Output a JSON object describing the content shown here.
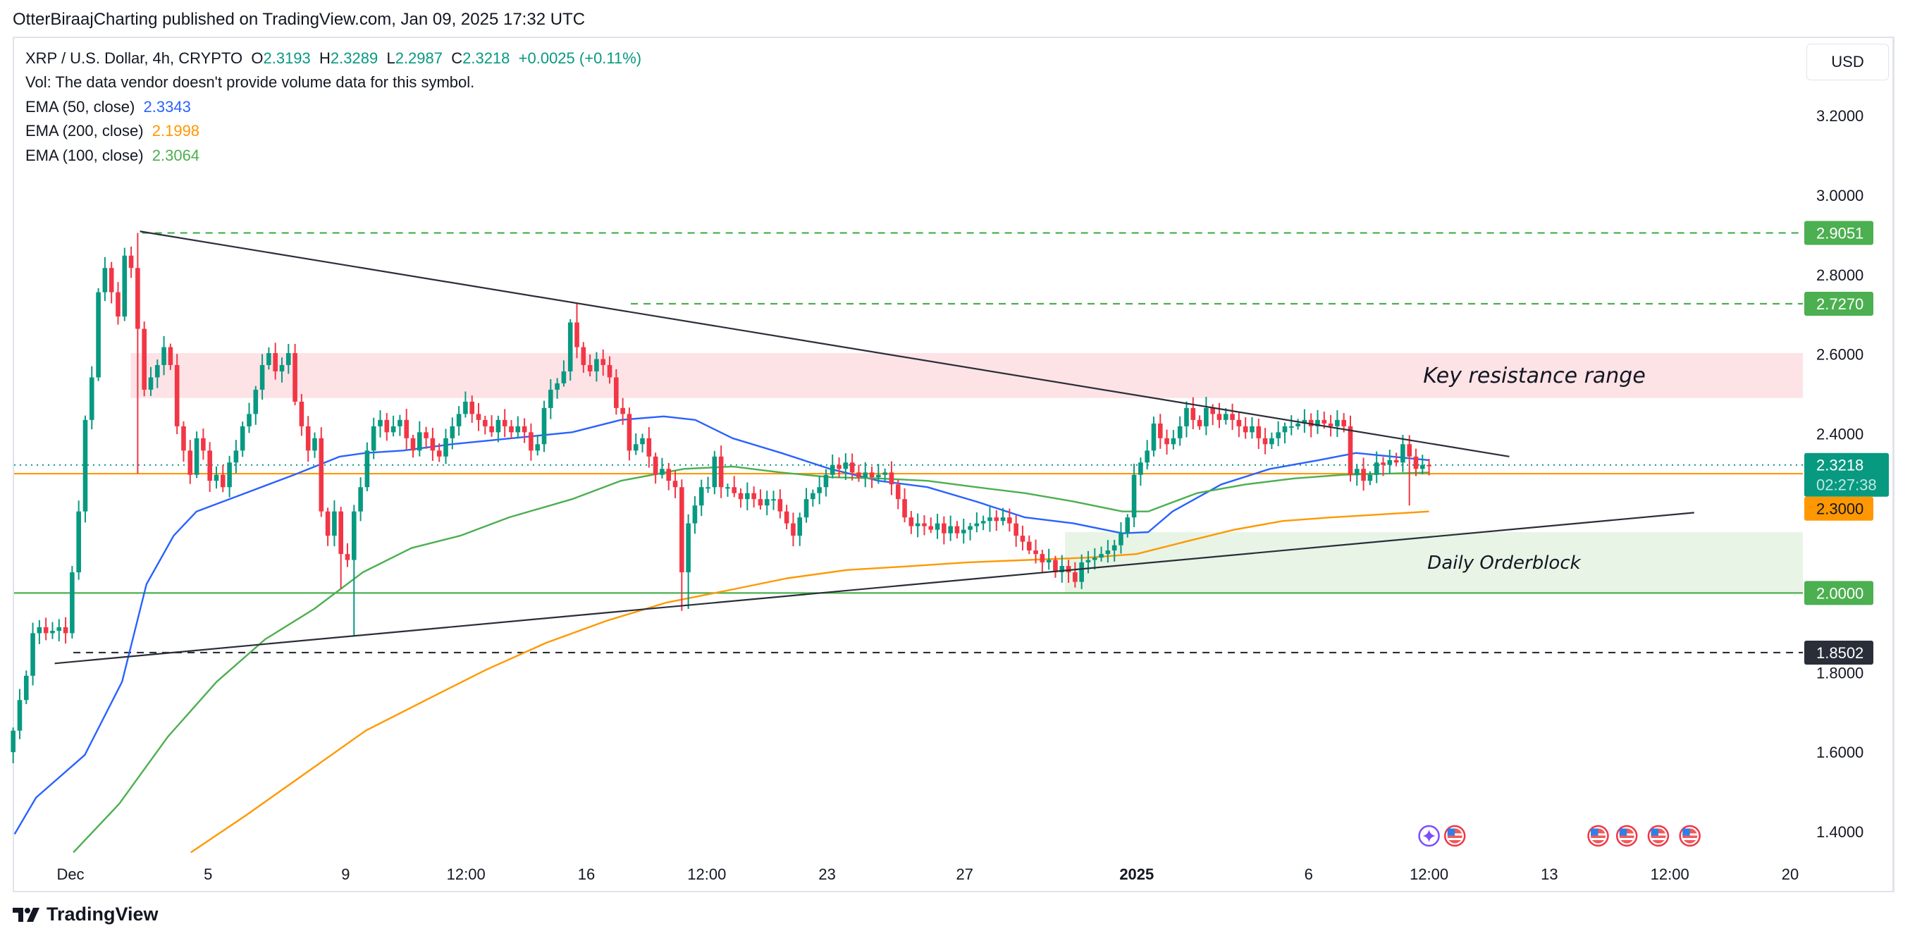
{
  "header": {
    "published": "OtterBiraajCharting published on TradingView.com, Jan 09, 2025 17:32 UTC"
  },
  "legend": {
    "symbol": "XRP / U.S. Dollar, 4h, CRYPTO",
    "o_label": "O",
    "o": "2.3193",
    "h_label": "H",
    "h": "2.3289",
    "l_label": "L",
    "l": "2.2987",
    "c_label": "C",
    "c": "2.3218",
    "change": "+0.0025 (+0.11%)",
    "vol": "Vol: The data vendor doesn't provide volume data for this symbol.",
    "ema50_label": "EMA (50, close)",
    "ema50": "2.3343",
    "ema200_label": "EMA (200, close)",
    "ema200": "2.1998",
    "ema100_label": "EMA (100, close)",
    "ema100": "2.3064"
  },
  "currency_button": "USD",
  "logo": {
    "text": "TradingView"
  },
  "colors": {
    "up": "#089981",
    "down": "#f23645",
    "ema50": "#2962ff",
    "ema100": "#4caf50",
    "ema200": "#ff9800",
    "resistance_zone": "#fde3e6",
    "orderblock_zone": "#e8f4e6",
    "level_green": "#4caf50",
    "trendline": "#2a2e39"
  },
  "chart_data": {
    "type": "candlestick",
    "grid": false,
    "ylim": [
      1.33,
      3.31
    ],
    "y_ticks": [
      "3.2000",
      "3.0000",
      "2.8000",
      "2.6000",
      "2.4000",
      "1.8000",
      "1.6000",
      "1.4000"
    ],
    "x_ticks": [
      {
        "label": "Dec",
        "date": "2024-12-01T00:00Z"
      },
      {
        "label": "5",
        "date": "2024-12-05T00:00Z"
      },
      {
        "label": "9",
        "date": "2024-12-09T00:00Z"
      },
      {
        "label": "12:00",
        "date": "2024-12-12T12:00Z"
      },
      {
        "label": "16",
        "date": "2024-12-16T00:00Z"
      },
      {
        "label": "12:00",
        "date": "2024-12-19T12:00Z"
      },
      {
        "label": "23",
        "date": "2024-12-23T00:00Z"
      },
      {
        "label": "27",
        "date": "2024-12-27T00:00Z"
      },
      {
        "label": "2025",
        "date": "2025-01-01T00:00Z",
        "bold": true
      },
      {
        "label": "6",
        "date": "2025-01-06T00:00Z"
      },
      {
        "label": "12:00",
        "date": "2025-01-09T12:00Z"
      },
      {
        "label": "13",
        "date": "2025-01-13T00:00Z"
      },
      {
        "label": "12:00",
        "date": "2025-01-16T12:00Z"
      },
      {
        "label": "20",
        "date": "2025-01-20T00:00Z"
      }
    ],
    "candles": {
      "start": "2024-11-29T08:00Z",
      "end": "2025-01-09T12:00Z",
      "first_open": 1.6,
      "close": [
        1.654,
        1.731,
        1.792,
        1.899,
        1.914,
        1.899,
        1.905,
        1.914,
        1.899,
        2.052,
        2.205,
        2.435,
        2.542,
        2.756,
        2.817,
        2.756,
        2.695,
        2.848,
        2.817,
        2.664,
        2.511,
        2.542,
        2.573,
        2.618,
        2.573,
        2.419,
        2.358,
        2.297,
        2.389,
        2.358,
        2.282,
        2.297,
        2.266,
        2.328,
        2.358,
        2.419,
        2.45,
        2.511,
        2.573,
        2.603,
        2.557,
        2.573,
        2.603,
        2.481,
        2.419,
        2.358,
        2.389,
        2.205,
        2.144,
        2.205,
        2.098,
        2.083,
        2.205,
        2.266,
        2.358,
        2.419,
        2.435,
        2.404,
        2.419,
        2.435,
        2.389,
        2.358,
        2.404,
        2.389,
        2.358,
        2.343,
        2.389,
        2.419,
        2.45,
        2.481,
        2.45,
        2.435,
        2.419,
        2.404,
        2.435,
        2.419,
        2.404,
        2.419,
        2.404,
        2.358,
        2.374,
        2.465,
        2.511,
        2.527,
        2.557,
        2.68,
        2.618,
        2.573,
        2.557,
        2.588,
        2.573,
        2.542,
        2.465,
        2.45,
        2.358,
        2.374,
        2.389,
        2.343,
        2.297,
        2.312,
        2.282,
        2.266,
        2.052,
        2.175,
        2.22,
        2.266,
        2.266,
        2.343,
        2.266,
        2.266,
        2.251,
        2.236,
        2.251,
        2.236,
        2.22,
        2.236,
        2.236,
        2.205,
        2.175,
        2.144,
        2.19,
        2.236,
        2.251,
        2.266,
        2.297,
        2.322,
        2.312,
        2.328,
        2.303,
        2.291,
        2.303,
        2.291,
        2.297,
        2.303,
        2.273,
        2.236,
        2.19,
        2.168,
        2.175,
        2.168,
        2.159,
        2.175,
        2.15,
        2.168,
        2.15,
        2.159,
        2.168,
        2.175,
        2.181,
        2.19,
        2.181,
        2.19,
        2.175,
        2.144,
        2.129,
        2.107,
        2.098,
        2.077,
        2.083,
        2.052,
        2.068,
        2.052,
        2.028,
        2.077,
        2.083,
        2.089,
        2.098,
        2.107,
        2.12,
        2.15,
        2.19,
        2.297,
        2.328,
        2.358,
        2.426,
        2.389,
        2.374,
        2.389,
        2.419,
        2.465,
        2.435,
        2.419,
        2.465,
        2.45,
        2.435,
        2.45,
        2.435,
        2.419,
        2.404,
        2.419,
        2.389,
        2.374,
        2.389,
        2.404,
        2.419,
        2.419,
        2.426,
        2.435,
        2.419,
        2.435,
        2.426,
        2.419,
        2.435,
        2.419,
        2.297,
        2.312,
        2.282,
        2.297,
        2.328,
        2.322,
        2.334,
        2.328,
        2.374,
        2.343,
        2.312,
        2.322,
        2.3218
      ],
      "extremes": [
        {
          "i": 19,
          "high": 2.9051,
          "low": 2.3
        },
        {
          "i": 52,
          "low": 1.89
        },
        {
          "i": 50,
          "low": 2.01
        },
        {
          "i": 86,
          "high": 2.727
        },
        {
          "i": 102,
          "low": 1.955
        },
        {
          "i": 103,
          "low": 1.96
        },
        {
          "i": 213,
          "low": 2.22
        }
      ]
    },
    "ema_series": [
      {
        "key": "ema50",
        "points": [
          [
            "2024-11-29T09:00Z",
            1.394
          ],
          [
            "2024-11-30T00:00Z",
            1.486
          ],
          [
            "2024-12-01T10:00Z",
            1.593
          ],
          [
            "2024-12-02T12:00Z",
            1.777
          ],
          [
            "2024-12-03T05:00Z",
            2.022
          ],
          [
            "2024-12-04T00:00Z",
            2.144
          ],
          [
            "2024-12-04T16:00Z",
            2.205
          ],
          [
            "2024-12-06T02:00Z",
            2.251
          ],
          [
            "2024-12-07T12:00Z",
            2.297
          ],
          [
            "2024-12-08T20:00Z",
            2.343
          ],
          [
            "2024-12-09T14:00Z",
            2.352
          ],
          [
            "2024-12-10T16:00Z",
            2.358
          ],
          [
            "2024-12-12T02:00Z",
            2.374
          ],
          [
            "2024-12-13T20:00Z",
            2.389
          ],
          [
            "2024-12-15T14:00Z",
            2.404
          ],
          [
            "2024-12-17T00:00Z",
            2.435
          ],
          [
            "2024-12-18T06:00Z",
            2.444
          ],
          [
            "2024-12-19T04:00Z",
            2.435
          ],
          [
            "2024-12-20T06:00Z",
            2.389
          ],
          [
            "2024-12-21T16:00Z",
            2.352
          ],
          [
            "2024-12-23T02:00Z",
            2.312
          ],
          [
            "2024-12-24T12:00Z",
            2.282
          ],
          [
            "2024-12-25T22:00Z",
            2.266
          ],
          [
            "2024-12-27T08:00Z",
            2.23
          ],
          [
            "2024-12-28T18:00Z",
            2.19
          ],
          [
            "2024-12-30T04:00Z",
            2.175
          ],
          [
            "2024-12-31T14:00Z",
            2.15
          ],
          [
            "2025-01-01T08:00Z",
            2.153
          ],
          [
            "2025-01-02T01:00Z",
            2.205
          ],
          [
            "2025-01-03T11:00Z",
            2.273
          ],
          [
            "2025-01-04T21:00Z",
            2.312
          ],
          [
            "2025-01-06T07:00Z",
            2.334
          ],
          [
            "2025-01-07T09:00Z",
            2.352
          ],
          [
            "2025-01-08T10:00Z",
            2.343
          ],
          [
            "2025-01-09T12:00Z",
            2.334
          ]
        ]
      },
      {
        "key": "ema100",
        "points": [
          [
            "2024-12-01T02:00Z",
            1.348
          ],
          [
            "2024-12-02T10:00Z",
            1.47
          ],
          [
            "2024-12-03T20:00Z",
            1.639
          ],
          [
            "2024-12-05T06:00Z",
            1.777
          ],
          [
            "2024-12-06T16:00Z",
            1.884
          ],
          [
            "2024-12-08T02:00Z",
            1.96
          ],
          [
            "2024-12-09T12:00Z",
            2.052
          ],
          [
            "2024-12-10T22:00Z",
            2.113
          ],
          [
            "2024-12-12T08:00Z",
            2.144
          ],
          [
            "2024-12-13T18:00Z",
            2.19
          ],
          [
            "2024-12-15T14:00Z",
            2.236
          ],
          [
            "2024-12-17T00:00Z",
            2.282
          ],
          [
            "2024-12-18T20:00Z",
            2.312
          ],
          [
            "2024-12-20T06:00Z",
            2.318
          ],
          [
            "2024-12-21T16:00Z",
            2.303
          ],
          [
            "2024-12-23T02:00Z",
            2.291
          ],
          [
            "2024-12-24T12:00Z",
            2.288
          ],
          [
            "2024-12-25T22:00Z",
            2.282
          ],
          [
            "2024-12-27T08:00Z",
            2.266
          ],
          [
            "2024-12-28T18:00Z",
            2.251
          ],
          [
            "2024-12-30T04:00Z",
            2.23
          ],
          [
            "2024-12-31T14:00Z",
            2.205
          ],
          [
            "2025-01-01T08:00Z",
            2.205
          ],
          [
            "2025-01-02T18:00Z",
            2.251
          ],
          [
            "2025-01-04T04:00Z",
            2.273
          ],
          [
            "2025-01-05T14:00Z",
            2.288
          ],
          [
            "2025-01-07T00:00Z",
            2.297
          ],
          [
            "2025-01-09T12:00Z",
            2.303
          ]
        ]
      },
      {
        "key": "ema200",
        "points": [
          [
            "2024-12-04T12:00Z",
            1.348
          ],
          [
            "2024-12-06T02:00Z",
            1.44
          ],
          [
            "2024-12-07T20:00Z",
            1.547
          ],
          [
            "2024-12-09T14:00Z",
            1.654
          ],
          [
            "2024-12-11T08:00Z",
            1.731
          ],
          [
            "2024-12-13T02:00Z",
            1.807
          ],
          [
            "2024-12-14T20:00Z",
            1.875
          ],
          [
            "2024-12-16T14:00Z",
            1.93
          ],
          [
            "2024-12-18T08:00Z",
            1.976
          ],
          [
            "2024-12-20T02:00Z",
            2.006
          ],
          [
            "2024-12-21T20:00Z",
            2.037
          ],
          [
            "2024-12-23T14:00Z",
            2.058
          ],
          [
            "2024-12-25T08:00Z",
            2.067
          ],
          [
            "2024-12-27T02:00Z",
            2.077
          ],
          [
            "2024-12-28T20:00Z",
            2.083
          ],
          [
            "2024-12-30T14:00Z",
            2.089
          ],
          [
            "2025-01-01T00:00Z",
            2.098
          ],
          [
            "2025-01-02T10:00Z",
            2.129
          ],
          [
            "2025-01-03T20:00Z",
            2.159
          ],
          [
            "2025-01-05T06:00Z",
            2.181
          ],
          [
            "2025-01-06T16:00Z",
            2.19
          ],
          [
            "2025-01-09T12:00Z",
            2.205
          ]
        ]
      }
    ],
    "price_tags": [
      {
        "value": "2.9051",
        "color": "#4caf50",
        "text_color": "#ffffff"
      },
      {
        "value": "2.7270",
        "color": "#4caf50",
        "text_color": "#ffffff"
      },
      {
        "value": "2.3218",
        "countdown": "02:27:38",
        "color": "#089981",
        "text_color": "#ffffff"
      },
      {
        "value": "2.3000",
        "color": "#ff9800",
        "text_color": "#131722"
      },
      {
        "value": "2.0000",
        "color": "#4caf50",
        "text_color": "#ffffff"
      },
      {
        "value": "1.8502",
        "color": "#2a2e39",
        "text_color": "#ffffff"
      }
    ],
    "drawings": {
      "resistance_zone": {
        "label": "Key resistance range",
        "from": "2024-12-02T18:00Z",
        "top": 2.603,
        "bottom": 2.49
      },
      "orderblock_zone": {
        "label": "Daily Orderblock",
        "from": "2024-12-29T22:00Z",
        "top": 2.153,
        "bottom": 2.0
      },
      "descending_trendline": [
        [
          "2024-12-03T00:30Z",
          2.909
        ],
        [
          "2025-01-11T20:00Z",
          2.343
        ]
      ],
      "ascending_trendline": [
        [
          "2024-11-30T13:00Z",
          1.823
        ],
        [
          "2025-01-17T05:00Z",
          2.202
        ]
      ],
      "level_2_9051": {
        "value": 2.9051,
        "from": "2024-12-03T02:00Z",
        "style": "dashed"
      },
      "level_2_7270": {
        "value": 2.727,
        "from": "2024-12-17T07:00Z",
        "style": "dashed"
      },
      "level_2_3000": {
        "value": 2.3,
        "style": "solid"
      },
      "level_2_0000": {
        "value": 2.0,
        "style": "solid"
      },
      "level_1_8502": {
        "value": 1.8502,
        "from": "2024-12-01T02:00Z",
        "style": "dashed"
      },
      "current_price_line": {
        "value": 2.3218,
        "style": "dotted"
      }
    },
    "events": [
      {
        "type": "ai-spark",
        "date": "2025-01-09T12:00Z"
      },
      {
        "type": "us-flag",
        "date": "2025-01-10T06:00Z"
      },
      {
        "type": "us-flag",
        "date": "2025-01-14T10:00Z"
      },
      {
        "type": "us-flag",
        "date": "2025-01-15T06:00Z"
      },
      {
        "type": "us-flag",
        "date": "2025-01-16T04:00Z"
      },
      {
        "type": "us-flag",
        "date": "2025-01-17T02:00Z"
      }
    ]
  }
}
